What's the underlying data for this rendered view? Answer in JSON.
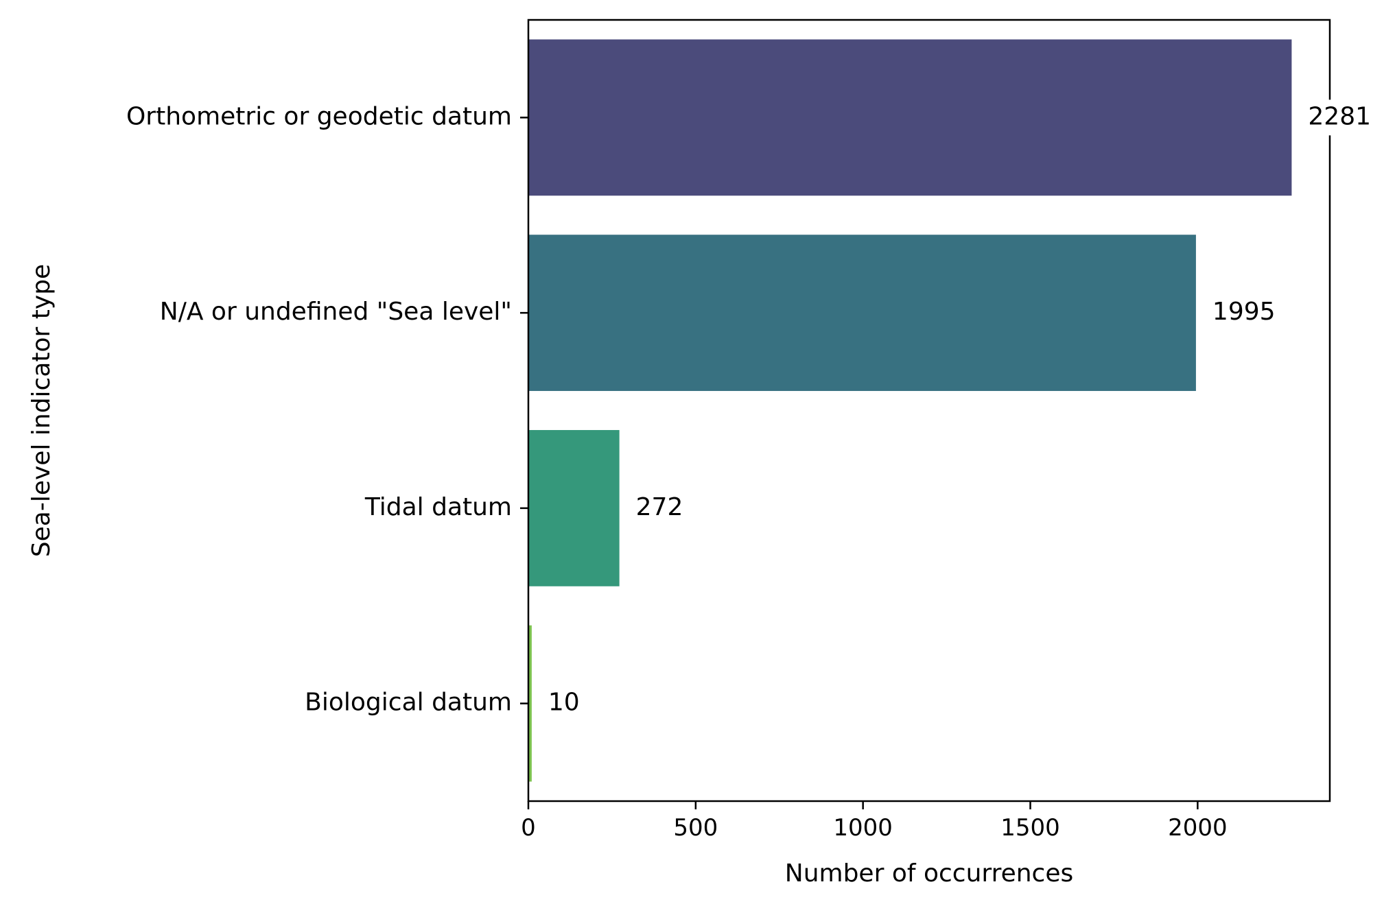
{
  "chart_data": {
    "type": "bar",
    "orientation": "horizontal",
    "title": "",
    "xlabel": "Number of occurrences",
    "ylabel": "Sea-level indicator type",
    "categories": [
      "Orthometric or geodetic datum",
      "N/A or undefined \"Sea level\"",
      "Tidal datum",
      "Biological datum"
    ],
    "values": [
      2281,
      1995,
      272,
      10
    ],
    "data_labels": [
      "2281",
      "1995",
      "272",
      "10"
    ],
    "colors": [
      "#4b4b7b",
      "#387181",
      "#35987b",
      "#7dc34f"
    ],
    "xlim": [
      0,
      2395
    ],
    "xticks": [
      0,
      500,
      1000,
      1500,
      2000
    ],
    "xtick_labels": [
      "0",
      "500",
      "1000",
      "1500",
      "2000"
    ],
    "grid": false,
    "legend": "none"
  }
}
